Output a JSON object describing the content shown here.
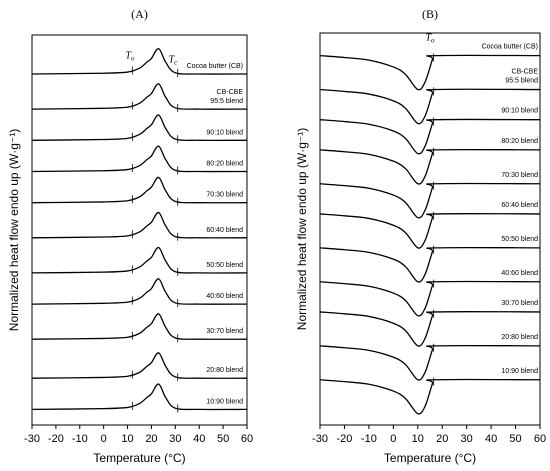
{
  "chart_data": [
    {
      "type": "line",
      "title": "(A)",
      "xlabel": "Temperature (°C)",
      "ylabel": "Normalized heat flow endo up (W·g⁻¹)",
      "xlim": [
        -30,
        60
      ],
      "xticks": [
        -30,
        -20,
        -10,
        0,
        10,
        20,
        30,
        40,
        50,
        60
      ],
      "ylim": [
        0,
        100
      ],
      "color": "#000000",
      "markers": [
        12,
        31
      ],
      "annotations": [
        {
          "text": "T",
          "sub": "o",
          "x": 11,
          "y": 94
        },
        {
          "text": "T",
          "sub": "c",
          "x": 29,
          "y": 93
        }
      ],
      "x": [
        -30,
        0,
        10,
        15,
        18,
        20,
        23,
        26,
        30,
        40,
        60
      ],
      "series": [
        {
          "name": "Cocoa butter (CB)",
          "values": [
            90,
            90.2,
            90.5,
            91.5,
            93,
            94,
            96.5,
            93,
            90.3,
            90,
            90
          ]
        },
        {
          "name": [
            "CB-CBE",
            "95:5 blend"
          ],
          "values": [
            81,
            81.2,
            81.5,
            82.5,
            84,
            85,
            87.5,
            84,
            81.3,
            81,
            81
          ]
        },
        {
          "name": "90:10 blend",
          "values": [
            73,
            73.2,
            73.5,
            74.5,
            76,
            77,
            79.5,
            76,
            73.3,
            73,
            73
          ]
        },
        {
          "name": "80:20 blend",
          "values": [
            65,
            65.2,
            65.5,
            66.5,
            68,
            69,
            71.5,
            68,
            65.3,
            65,
            65
          ]
        },
        {
          "name": "70:30 blend",
          "values": [
            57,
            57.2,
            57.5,
            58.5,
            60,
            61,
            63.5,
            60,
            57.3,
            57,
            57
          ]
        },
        {
          "name": "60:40 blend",
          "values": [
            48,
            48.2,
            48.5,
            49.5,
            51,
            52,
            54.5,
            51,
            48.3,
            48,
            48
          ]
        },
        {
          "name": "50:50 blend",
          "values": [
            39,
            39.2,
            39.5,
            40.5,
            42,
            43,
            45.5,
            42,
            39.3,
            39,
            39
          ]
        },
        {
          "name": "40:60 blend",
          "values": [
            31,
            31.2,
            31.5,
            32.5,
            34,
            35,
            37.5,
            34,
            31.3,
            31,
            31
          ]
        },
        {
          "name": "30:70 blend",
          "values": [
            22,
            22.2,
            22.5,
            23.5,
            25,
            26,
            28.5,
            25,
            22.3,
            22,
            22
          ]
        },
        {
          "name": "20:80 blend",
          "values": [
            12,
            12.2,
            12.5,
            13.5,
            15,
            16,
            18.5,
            15,
            12.3,
            12,
            12
          ]
        },
        {
          "name": "10:90 blend",
          "values": [
            4,
            4.2,
            4.5,
            5.5,
            7,
            8,
            10.5,
            7,
            4.3,
            4,
            4
          ]
        }
      ]
    },
    {
      "type": "line",
      "title": "(B)",
      "xlabel": "Temperature (°C)",
      "ylabel": "Normalized heat flow endo up (W·g⁻¹)",
      "xlim": [
        -30,
        60
      ],
      "xticks": [
        -30,
        -20,
        -10,
        0,
        10,
        20,
        30,
        40,
        50,
        60
      ],
      "ylim": [
        -4,
        100
      ],
      "color": "#000000",
      "markers": [
        16.5
      ],
      "annotations": [
        {
          "text": "T",
          "sub": "o",
          "x": 15,
          "y": 98
        }
      ],
      "x": [
        -30,
        -20,
        -10,
        0,
        5,
        10,
        13,
        16,
        17,
        60
      ],
      "series": [
        {
          "name": "Cocoa butter (CB)",
          "values": [
            94,
            93.5,
            92.8,
            91,
            89,
            85,
            87,
            93,
            94,
            94
          ]
        },
        {
          "name": [
            "CB-CBE",
            "95:5 blend"
          ],
          "values": [
            85,
            84.5,
            83.8,
            82,
            80,
            76,
            78,
            84,
            85,
            85
          ]
        },
        {
          "name": "90:10 blend",
          "values": [
            77,
            76.5,
            75.8,
            74,
            72,
            68,
            70,
            76,
            77,
            77
          ]
        },
        {
          "name": "80:20 blend",
          "values": [
            69,
            68.5,
            67.8,
            66,
            64,
            60,
            62,
            68,
            69,
            69
          ]
        },
        {
          "name": "70:30 blend",
          "values": [
            60,
            59.5,
            58.8,
            57,
            55,
            51,
            53,
            59,
            60,
            60
          ]
        },
        {
          "name": "60:40 blend",
          "values": [
            52,
            51.5,
            50.8,
            49,
            47,
            43,
            45,
            51,
            52,
            52
          ]
        },
        {
          "name": "50:50 blend",
          "values": [
            43,
            42.5,
            41.8,
            40,
            38,
            34,
            36,
            42,
            43,
            43
          ]
        },
        {
          "name": "40:60 blend",
          "values": [
            34,
            33.5,
            32.8,
            31,
            29,
            25,
            27,
            33,
            34,
            34
          ]
        },
        {
          "name": "30:70 blend",
          "values": [
            26,
            25.5,
            24.8,
            23,
            21,
            17,
            19,
            25,
            26,
            26
          ]
        },
        {
          "name": "20:80 blend",
          "values": [
            17,
            16.5,
            15.8,
            14,
            12,
            8,
            10,
            16,
            17,
            17
          ]
        },
        {
          "name": "10:90 blend",
          "values": [
            8,
            7.5,
            6.8,
            5,
            3,
            -1,
            1,
            7,
            8,
            8
          ]
        }
      ]
    }
  ]
}
